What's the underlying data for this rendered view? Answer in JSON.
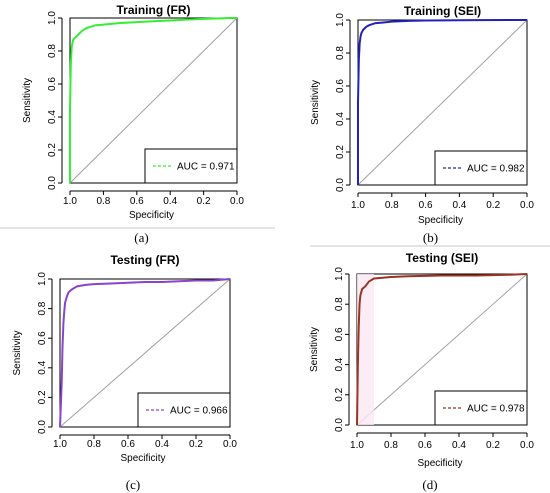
{
  "chart_data": [
    {
      "panel": "(a)",
      "type": "line",
      "title": "Training (FR)",
      "xlabel": "Specificity",
      "ylabel": "Sensitivity",
      "xlim": [
        1.0,
        0.0
      ],
      "ylim": [
        0.0,
        1.0
      ],
      "x_reversed": true,
      "xticks": [
        "1.0",
        "0.8",
        "0.6",
        "0.4",
        "0.2",
        "0.0"
      ],
      "yticks": [
        "0.0",
        "0.2",
        "0.4",
        "0.6",
        "0.8",
        "1.0"
      ],
      "color": "#33ee33",
      "legend": "AUC = 0.971",
      "legend_placement": "bottom-right",
      "specificity": [
        1.0,
        1.0,
        0.995,
        0.99,
        0.985,
        0.98,
        0.97,
        0.96,
        0.95,
        0.93,
        0.9,
        0.85,
        0.8,
        0.7,
        0.6,
        0.5,
        0.4,
        0.3,
        0.2,
        0.1,
        0.05,
        0.0
      ],
      "sensitivity": [
        0.0,
        0.45,
        0.72,
        0.82,
        0.85,
        0.87,
        0.88,
        0.89,
        0.9,
        0.92,
        0.94,
        0.955,
        0.96,
        0.97,
        0.975,
        0.98,
        0.985,
        0.99,
        0.995,
        0.998,
        1.0,
        1.0
      ]
    },
    {
      "panel": "(b)",
      "type": "line",
      "title": "Training (SEI)",
      "xlabel": "Specificity",
      "ylabel": "Sensitivity",
      "xlim": [
        1.0,
        0.0
      ],
      "ylim": [
        0.0,
        1.0
      ],
      "x_reversed": true,
      "xticks": [
        "1.0",
        "0.8",
        "0.6",
        "0.4",
        "0.2",
        "0.0"
      ],
      "yticks": [
        "0.0",
        "0.2",
        "0.4",
        "0.6",
        "0.8",
        "1.0"
      ],
      "color": "#2222bb",
      "legend": "AUC = 0.982",
      "legend_placement": "bottom-right",
      "specificity": [
        1.0,
        1.0,
        0.995,
        0.99,
        0.985,
        0.98,
        0.97,
        0.96,
        0.95,
        0.93,
        0.9,
        0.85,
        0.8,
        0.7,
        0.6,
        0.5,
        0.3,
        0.1,
        0.0
      ],
      "sensitivity": [
        0.0,
        0.5,
        0.76,
        0.86,
        0.9,
        0.92,
        0.94,
        0.95,
        0.96,
        0.97,
        0.98,
        0.985,
        0.99,
        0.995,
        0.997,
        0.998,
        0.999,
        1.0,
        1.0
      ]
    },
    {
      "panel": "(c)",
      "type": "line",
      "title": "Testing (FR)",
      "xlabel": "Specificity",
      "ylabel": "Sensitivity",
      "xlim": [
        1.0,
        0.0
      ],
      "ylim": [
        0.0,
        1.0
      ],
      "x_reversed": true,
      "xticks": [
        "1.0",
        "0.8",
        "0.6",
        "0.4",
        "0.2",
        "0.0"
      ],
      "yticks": [
        "0.0",
        "0.2",
        "0.4",
        "0.6",
        "0.8",
        "1.0"
      ],
      "color": "#8844cc",
      "legend": "AUC = 0.966",
      "legend_placement": "bottom-right",
      "specificity": [
        1.0,
        0.99,
        0.985,
        0.98,
        0.975,
        0.97,
        0.96,
        0.95,
        0.93,
        0.9,
        0.85,
        0.8,
        0.7,
        0.6,
        0.5,
        0.4,
        0.3,
        0.2,
        0.1,
        0.0
      ],
      "sensitivity": [
        0.0,
        0.3,
        0.55,
        0.7,
        0.78,
        0.84,
        0.88,
        0.91,
        0.93,
        0.95,
        0.96,
        0.965,
        0.97,
        0.975,
        0.98,
        0.98,
        0.985,
        0.99,
        0.99,
        1.0
      ]
    },
    {
      "panel": "(d)",
      "type": "line",
      "title": "Testing (SEI)",
      "xlabel": "Specificity",
      "ylabel": "Sensitivity",
      "xlim": [
        1.0,
        0.0
      ],
      "ylim": [
        0.0,
        1.0
      ],
      "x_reversed": true,
      "xticks": [
        "1.0",
        "0.8",
        "0.6",
        "0.4",
        "0.2",
        "0.0"
      ],
      "yticks": [
        "0.0",
        "0.2",
        "0.4",
        "0.6",
        "0.8",
        "1.0"
      ],
      "color": "#993322",
      "legend": "AUC = 0.978",
      "legend_placement": "bottom-right",
      "specificity": [
        1.0,
        0.995,
        0.99,
        0.985,
        0.98,
        0.975,
        0.97,
        0.96,
        0.95,
        0.93,
        0.9,
        0.85,
        0.8,
        0.7,
        0.5,
        0.3,
        0.1,
        0.0
      ],
      "sensitivity": [
        0.0,
        0.4,
        0.65,
        0.8,
        0.86,
        0.88,
        0.9,
        0.91,
        0.92,
        0.95,
        0.97,
        0.975,
        0.98,
        0.985,
        0.99,
        0.99,
        0.995,
        1.0
      ]
    }
  ]
}
